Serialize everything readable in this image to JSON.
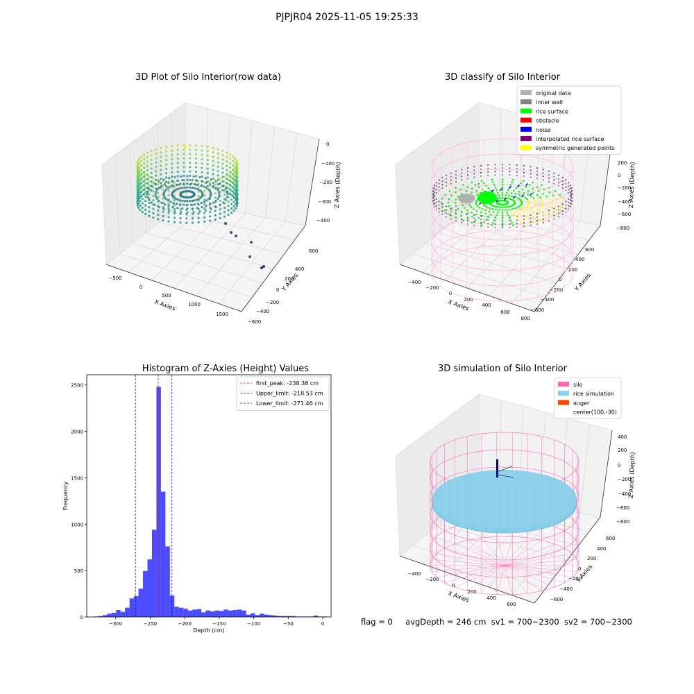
{
  "figure": {
    "suptitle": "PJPJR04 2025-11-05 19:25:33",
    "status": {
      "flag": "flag = 0",
      "avg": "avgDepth = 246 cm",
      "sv1": "sv1 = 700~2300",
      "sv2": "sv2 = 700~2300"
    }
  },
  "panels": {
    "raw": {
      "title": "3D Plot of Silo Interior(row data)",
      "xlabel": "X Axies",
      "ylabel": "Y Axies",
      "zlabel": "Z Axies (Depth)",
      "xticks": [
        "−500",
        "0",
        "500",
        "1000",
        "1500"
      ],
      "yticks": [
        "600",
        "400",
        "200",
        "0",
        "−200",
        "−400",
        "−600"
      ],
      "zticks": [
        "0",
        "−100",
        "−200",
        "−300",
        "−400"
      ]
    },
    "classify": {
      "title": "3D classify of Silo Interior",
      "xlabel": "X Axies",
      "ylabel": "Y Axies",
      "zlabel": "Z Axies (Depth)",
      "xticks": [
        "−400",
        "−200",
        "0",
        "200",
        "400",
        "600",
        "800"
      ],
      "yticks": [
        "600",
        "400",
        "200",
        "0",
        "−200",
        "−400",
        "−600"
      ],
      "zticks": [
        "200",
        "0",
        "−200",
        "−400",
        "−600",
        "−800"
      ],
      "legend": [
        {
          "label": "original data",
          "color": "#b0b0b0"
        },
        {
          "label": "inner wall",
          "color": "#808080"
        },
        {
          "label": "rice surface",
          "color": "#00ff00"
        },
        {
          "label": "obstacle",
          "color": "#ff0000"
        },
        {
          "label": "noise",
          "color": "#0000ff"
        },
        {
          "label": "interpolated rice surface",
          "color": "#800080"
        },
        {
          "label": "symmetric generated points",
          "color": "#ffff00"
        }
      ]
    },
    "simulation": {
      "title": "3D simulation of Silo Interior",
      "xlabel": "X Axies",
      "ylabel": "Y Axies",
      "zlabel": "Z Axies (Depth)",
      "xticks": [
        "−400",
        "−200",
        "0",
        "200",
        "400",
        "600"
      ],
      "yticks": [
        "600",
        "400",
        "200",
        "0",
        "−200",
        "−400",
        "−600"
      ],
      "zticks": [
        "400",
        "200",
        "0",
        "−200",
        "−400",
        "−600",
        "−800"
      ],
      "legend": [
        {
          "label": "silo",
          "color": "#ff69b4"
        },
        {
          "label": "rice simulation",
          "color": "#87ceeb"
        },
        {
          "label": "auger",
          "color": "#ff4500"
        },
        {
          "label": "center(100,-30)",
          "color": ""
        }
      ]
    }
  },
  "chart_data": {
    "type": "bar",
    "title": "Histogram of Z-Axies (Height) Values",
    "xlabel": "Depth (cm)",
    "ylabel": "Frequency",
    "xlim": [
      -342,
      12
    ],
    "ylim": [
      0,
      2610
    ],
    "xticks": [
      -300,
      -250,
      -200,
      -150,
      -100,
      -50,
      0
    ],
    "xtick_labels": [
      "−300",
      "−250",
      "−200",
      "−150",
      "−100",
      "−50",
      "0"
    ],
    "yticks": [
      0,
      500,
      1000,
      1500,
      2000,
      2500
    ],
    "yticks_labels": [
      "0",
      "500",
      "1000",
      "1500",
      "2000",
      "2500"
    ],
    "bar_color": "#0000ff",
    "bin_width": 6.5,
    "bin_starts": [
      -332,
      -325.5,
      -319,
      -312.5,
      -306,
      -299.5,
      -293,
      -286.5,
      -280,
      -273.5,
      -267,
      -260.5,
      -254,
      -247.5,
      -241,
      -234.5,
      -228,
      -221.5,
      -215,
      -208.5,
      -202,
      -195.5,
      -189,
      -182.5,
      -176,
      -169.5,
      -163,
      -156.5,
      -150,
      -143.5,
      -137,
      -130.5,
      -124,
      -117.5,
      -111,
      -104.5,
      -98,
      -91.5,
      -85,
      -78.5,
      -72,
      -65.5,
      -59,
      -52.5,
      -46,
      -39.5,
      -33,
      -26.5,
      -20,
      -13.5,
      -7,
      -0.5
    ],
    "values": [
      5,
      10,
      20,
      35,
      45,
      75,
      55,
      100,
      200,
      225,
      305,
      495,
      620,
      940,
      2480,
      1350,
      760,
      230,
      110,
      100,
      90,
      70,
      80,
      85,
      50,
      70,
      60,
      70,
      65,
      80,
      70,
      75,
      80,
      70,
      25,
      40,
      20,
      35,
      25,
      20,
      15,
      10,
      10,
      10,
      10,
      5,
      5,
      5,
      5,
      15,
      5,
      5
    ],
    "reference_lines": [
      {
        "label": "first_peak: -238.38 cm",
        "x": -238.38,
        "color": "#ff0000"
      },
      {
        "label": "Upper_limit: -218.53 cm",
        "x": -218.53,
        "color": "#0000ff"
      },
      {
        "label": "Lower_limit: -271.46 cm",
        "x": -271.46,
        "color": "#0000ff"
      }
    ],
    "legend_position": "upper right"
  }
}
